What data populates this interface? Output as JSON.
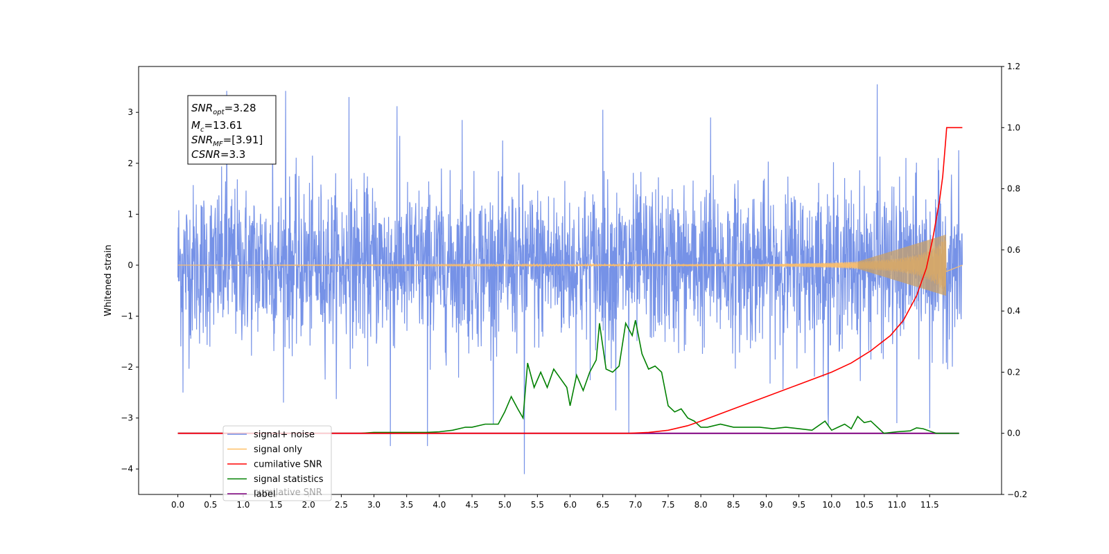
{
  "chart_data": {
    "type": "line",
    "ylabel": "Whitened strain",
    "xlim": [
      -0.6,
      12.6
    ],
    "ylim": [
      -4.5,
      3.9
    ],
    "ylim_right": [
      -0.2,
      1.2
    ],
    "grid": false,
    "legend_placement": "lower-left",
    "x_ticks": [
      "0.0",
      "0.5",
      "1.0",
      "1.5",
      "2.0",
      "2.5",
      "3.0",
      "3.5",
      "4.0",
      "4.5",
      "5.0",
      "5.5",
      "6.0",
      "6.5",
      "7.0",
      "7.5",
      "8.0",
      "8.5",
      "9.0",
      "9.5",
      "10.0",
      "10.5",
      "11.0",
      "11.5"
    ],
    "y_ticks_left": [
      "3",
      "2",
      "1",
      "0",
      "−1",
      "−2",
      "−3",
      "−4"
    ],
    "y_ticks_right": [
      "1.2",
      "1.0",
      "0.8",
      "0.6",
      "0.4",
      "0.2",
      "0.0",
      "−0.2"
    ],
    "annotation": {
      "snr_opt": "=3.28",
      "mc": "=13.61",
      "snr_mf": "=[3.91]",
      "csnr": "=3.3"
    },
    "series": [
      {
        "name": "signal+ noise",
        "color": "#6f8ce6",
        "axis": "left",
        "x_range": [
          0.0,
          12.0
        ],
        "typical_amplitude": 1.25,
        "spikes": [
          {
            "x": 0.08,
            "y": -2.5
          },
          {
            "x": 0.75,
            "y": 3.42
          },
          {
            "x": 1.65,
            "y": 3.42
          },
          {
            "x": 2.62,
            "y": 3.3
          },
          {
            "x": 3.25,
            "y": -3.55
          },
          {
            "x": 3.35,
            "y": 3.12
          },
          {
            "x": 3.82,
            "y": -3.55
          },
          {
            "x": 5.3,
            "y": -4.1
          },
          {
            "x": 6.5,
            "y": 3.05
          },
          {
            "x": 6.7,
            "y": -2.85
          },
          {
            "x": 6.9,
            "y": -3.3
          },
          {
            "x": 10.7,
            "y": 3.55
          },
          {
            "x": 9.95,
            "y": -3.15
          },
          {
            "x": 11.0,
            "y": -3.1
          },
          {
            "x": 11.5,
            "y": -3.2
          },
          {
            "x": 1.45,
            "y": 2.9
          },
          {
            "x": 4.35,
            "y": 2.85
          },
          {
            "x": 8.15,
            "y": 2.9
          }
        ]
      },
      {
        "name": "signal only",
        "color": "#ffbf66",
        "axis": "left",
        "x_range": [
          0.0,
          11.75
        ],
        "chirp_envelope": [
          [
            0.0,
            0.0
          ],
          [
            9.0,
            0.02
          ],
          [
            10.0,
            0.05
          ],
          [
            10.5,
            0.08
          ],
          [
            11.0,
            0.13
          ],
          [
            11.3,
            0.2
          ],
          [
            11.5,
            0.3
          ],
          [
            11.65,
            0.42
          ],
          [
            11.75,
            0.6
          ]
        ]
      },
      {
        "name": "cumilative SNR",
        "color": "#ff0000",
        "axis": "right",
        "x": [
          0.0,
          6.5,
          6.9,
          7.2,
          7.5,
          7.8,
          8.0,
          8.5,
          9.0,
          9.5,
          10.0,
          10.3,
          10.6,
          10.9,
          11.1,
          11.3,
          11.45,
          11.55,
          11.65,
          11.7,
          11.75,
          11.76,
          12.0
        ],
        "values": [
          0.0,
          0.0,
          0.0,
          0.003,
          0.01,
          0.025,
          0.04,
          0.08,
          0.12,
          0.16,
          0.2,
          0.23,
          0.27,
          0.32,
          0.37,
          0.45,
          0.54,
          0.64,
          0.76,
          0.84,
          0.97,
          1.0,
          1.0
        ]
      },
      {
        "name": "signal statistics",
        "color": "#008000",
        "axis": "right",
        "x": [
          0.0,
          2.8,
          3.0,
          3.5,
          3.8,
          4.0,
          4.2,
          4.4,
          4.5,
          4.7,
          4.9,
          5.0,
          5.1,
          5.2,
          5.28,
          5.35,
          5.45,
          5.55,
          5.65,
          5.75,
          5.85,
          5.95,
          6.0,
          6.1,
          6.2,
          6.3,
          6.4,
          6.45,
          6.55,
          6.65,
          6.75,
          6.85,
          6.95,
          7.0,
          7.1,
          7.2,
          7.3,
          7.4,
          7.5,
          7.6,
          7.7,
          7.8,
          7.9,
          8.0,
          8.1,
          8.3,
          8.5,
          8.7,
          8.9,
          9.1,
          9.3,
          9.5,
          9.7,
          9.9,
          10.0,
          10.1,
          10.2,
          10.3,
          10.4,
          10.5,
          10.6,
          10.8,
          11.0,
          11.2,
          11.3,
          11.4,
          11.6,
          11.95
        ],
        "values": [
          0.0,
          0.0,
          0.003,
          0.003,
          0.003,
          0.005,
          0.01,
          0.02,
          0.02,
          0.03,
          0.03,
          0.07,
          0.12,
          0.08,
          0.05,
          0.23,
          0.15,
          0.2,
          0.15,
          0.21,
          0.18,
          0.15,
          0.09,
          0.19,
          0.14,
          0.2,
          0.24,
          0.36,
          0.21,
          0.2,
          0.22,
          0.36,
          0.32,
          0.37,
          0.26,
          0.21,
          0.22,
          0.2,
          0.09,
          0.07,
          0.08,
          0.05,
          0.04,
          0.02,
          0.02,
          0.03,
          0.02,
          0.02,
          0.02,
          0.015,
          0.02,
          0.015,
          0.01,
          0.04,
          0.01,
          0.02,
          0.03,
          0.015,
          0.055,
          0.035,
          0.04,
          0.0,
          0.005,
          0.008,
          0.018,
          0.015,
          0.0,
          0.0
        ]
      },
      {
        "name": "label",
        "color": "#800080",
        "axis": "right",
        "x": [
          0.0,
          11.95
        ],
        "values": [
          0.0,
          0.0
        ]
      }
    ],
    "legend": {
      "entries": [
        "signal+ noise",
        "signal only",
        "cumilative SNR",
        "signal statistics",
        "label"
      ],
      "occluded_text": "cumilative SNR"
    }
  }
}
